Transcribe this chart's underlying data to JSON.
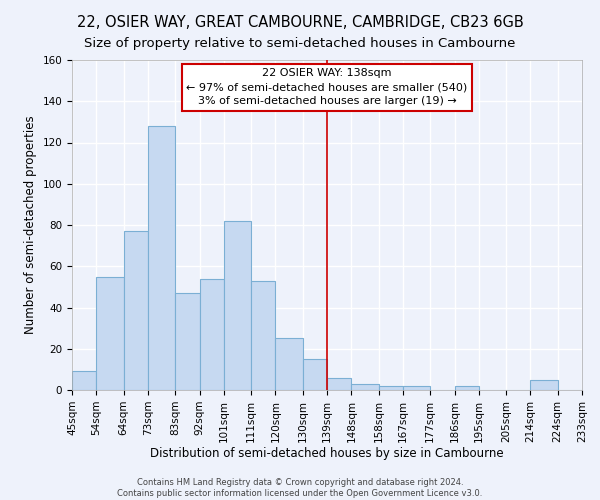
{
  "title": "22, OSIER WAY, GREAT CAMBOURNE, CAMBRIDGE, CB23 6GB",
  "subtitle": "Size of property relative to semi-detached houses in Cambourne",
  "xlabel": "Distribution of semi-detached houses by size in Cambourne",
  "ylabel": "Number of semi-detached properties",
  "bin_edges": [
    45,
    54,
    64,
    73,
    83,
    92,
    101,
    111,
    120,
    130,
    139,
    148,
    158,
    167,
    177,
    186,
    195,
    205,
    214,
    224,
    233
  ],
  "bar_counts": [
    9,
    55,
    77,
    128,
    47,
    54,
    82,
    53,
    25,
    15,
    6,
    3,
    2,
    2,
    0,
    2,
    0,
    0,
    5,
    0
  ],
  "vline_x": 139,
  "vline_color": "#cc0000",
  "bar_fill_color": "#c6d9f1",
  "bar_edge_color": "#7bafd4",
  "annotation_title": "22 OSIER WAY: 138sqm",
  "annotation_line1": "← 97% of semi-detached houses are smaller (540)",
  "annotation_line2": "3% of semi-detached houses are larger (19) →",
  "annotation_box_edgecolor": "#cc0000",
  "annotation_box_facecolor": "#ffffff",
  "ylim": [
    0,
    160
  ],
  "yticks": [
    0,
    20,
    40,
    60,
    80,
    100,
    120,
    140,
    160
  ],
  "title_fontsize": 10.5,
  "subtitle_fontsize": 9.5,
  "xlabel_fontsize": 8.5,
  "ylabel_fontsize": 8.5,
  "tick_fontsize": 7.5,
  "ann_fontsize": 8,
  "footer_line1": "Contains HM Land Registry data © Crown copyright and database right 2024.",
  "footer_line2": "Contains public sector information licensed under the Open Government Licence v3.0.",
  "bg_color": "#eef2fb",
  "grid_color": "#ffffff",
  "grid_linewidth": 1.0
}
